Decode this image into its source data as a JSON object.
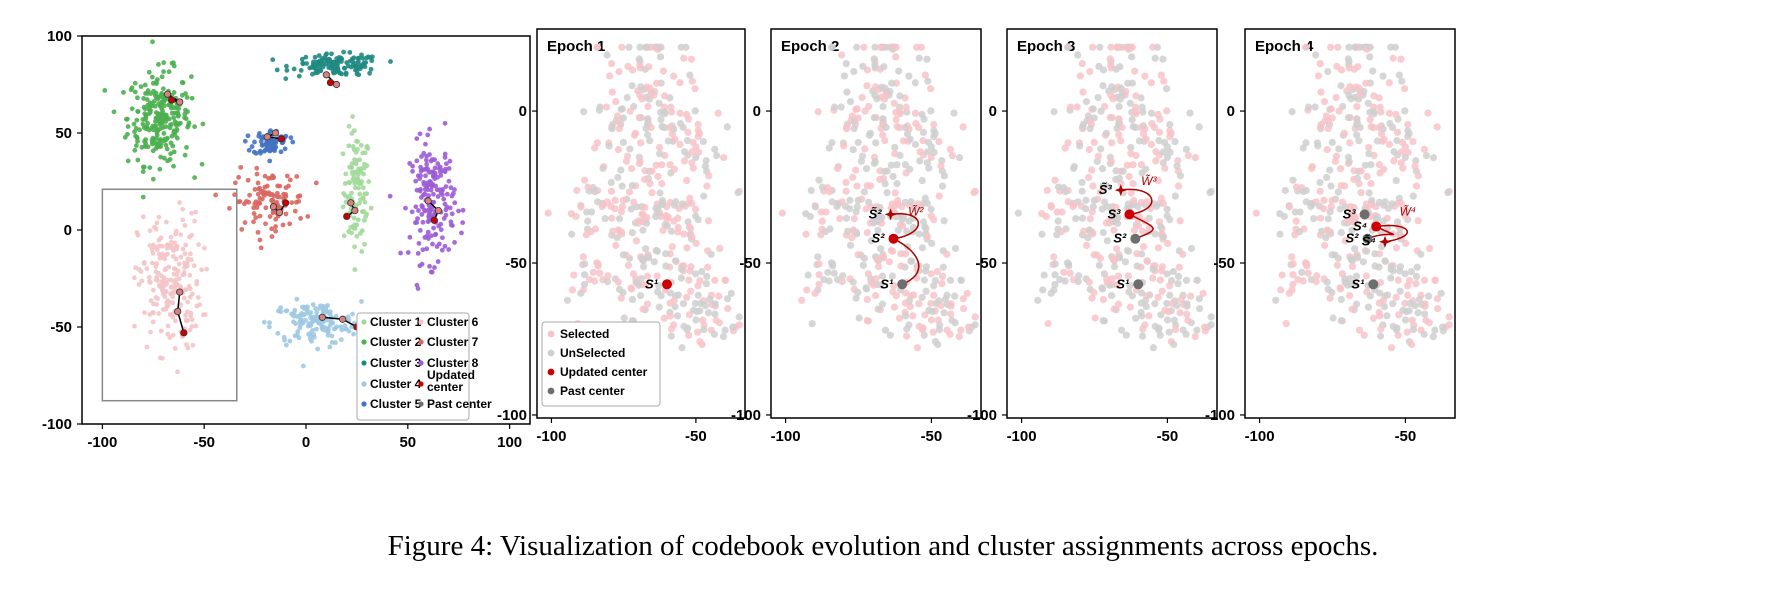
{
  "caption": "Figure 4: Visualization of codebook evolution and cluster assignments across epochs.",
  "chart_data": [
    {
      "type": "scatter",
      "xlim": [
        -110,
        110
      ],
      "ylim": [
        -100,
        100
      ],
      "xticks": [
        -100,
        -50,
        0,
        50,
        100
      ],
      "yticks": [
        100,
        50,
        0,
        -50,
        -100
      ],
      "grid": false,
      "legend_position": "bottom-right",
      "clusters": [
        {
          "name": "Cluster 1",
          "color": "#a3d99b",
          "center": [
            25,
            20
          ],
          "spread": [
            6,
            28
          ],
          "n": 110
        },
        {
          "name": "Cluster 2",
          "color": "#4caf50",
          "center": [
            -72,
            58
          ],
          "spread": [
            14,
            22
          ],
          "n": 260
        },
        {
          "name": "Cluster 3",
          "color": "#1f8a82",
          "center": [
            15,
            85
          ],
          "spread": [
            20,
            5
          ],
          "n": 130
        },
        {
          "name": "Cluster 4",
          "color": "#9ec9e2",
          "center": [
            5,
            -48
          ],
          "spread": [
            20,
            10
          ],
          "n": 150
        },
        {
          "name": "Cluster 5",
          "color": "#4472c4",
          "center": [
            -17,
            45
          ],
          "spread": [
            8,
            6
          ],
          "n": 70
        },
        {
          "name": "Cluster 6",
          "color": "#f4c4c8",
          "center": [
            -67,
            -27
          ],
          "spread": [
            14,
            32
          ],
          "n": 220
        },
        {
          "name": "Cluster 7",
          "color": "#d9675f",
          "center": [
            -18,
            15
          ],
          "spread": [
            16,
            14
          ],
          "n": 110
        },
        {
          "name": "Cluster 8",
          "color": "#9c5dd6",
          "center": [
            62,
            15
          ],
          "spread": [
            10,
            28
          ],
          "n": 190
        }
      ],
      "trajectories": [
        [
          [
            -62,
            -32
          ],
          [
            -63,
            -42
          ],
          [
            -60,
            -53
          ]
        ],
        [
          [
            -68,
            70
          ],
          [
            -62,
            66
          ],
          [
            -66,
            67
          ]
        ],
        [
          [
            10,
            80
          ],
          [
            15,
            75
          ],
          [
            12,
            76
          ]
        ],
        [
          [
            -15,
            50
          ],
          [
            -19,
            48
          ],
          [
            -12,
            47
          ]
        ],
        [
          [
            -16,
            12
          ],
          [
            -13,
            9
          ],
          [
            -10,
            14
          ]
        ],
        [
          [
            22,
            14
          ],
          [
            24,
            10
          ],
          [
            20,
            7
          ]
        ],
        [
          [
            60,
            15
          ],
          [
            65,
            10
          ],
          [
            63,
            5
          ]
        ],
        [
          [
            8,
            -45
          ],
          [
            18,
            -46
          ],
          [
            25,
            -50
          ]
        ]
      ],
      "legend": [
        {
          "label": "Cluster 1",
          "color": "#a3d99b"
        },
        {
          "label": "Cluster 6",
          "color": "#f4c4c8"
        },
        {
          "label": "Cluster 2",
          "color": "#4caf50"
        },
        {
          "label": "Cluster 7",
          "color": "#d9675f"
        },
        {
          "label": "Cluster 3",
          "color": "#1f8a82"
        },
        {
          "label": "Cluster 8",
          "color": "#9c5dd6"
        },
        {
          "label": "Cluster 4",
          "color": "#9ec9e2"
        },
        {
          "label": "Updated center",
          "color": "#cc0000"
        },
        {
          "label": "Cluster 5",
          "color": "#4472c4"
        },
        {
          "label": "Past center",
          "color": "#6e6e6e"
        }
      ],
      "zoom_box": {
        "x": [
          -100,
          -34
        ],
        "y": [
          -88,
          21
        ]
      }
    },
    {
      "type": "scatter",
      "title": "Epoch 1",
      "xlim": [
        -105,
        -33
      ],
      "ylim": [
        -101,
        27
      ],
      "xticks": [
        -100,
        -50
      ],
      "yticks": [
        0,
        -50,
        -100
      ],
      "grid": false,
      "legend_position": "bottom-left",
      "legend": [
        {
          "label": "Selected",
          "color": "#f4c4c8"
        },
        {
          "label": "UnSelected",
          "color": "#cfcfcf"
        },
        {
          "label": "Updated center",
          "color": "#cc0000"
        },
        {
          "label": "Past center",
          "color": "#6e6e6e"
        }
      ],
      "markers": [
        {
          "label": "S¹",
          "kind": "updated",
          "point": [
            -60,
            -57
          ]
        }
      ]
    },
    {
      "type": "scatter",
      "title": "Epoch 2",
      "xlim": [
        -105,
        -33
      ],
      "ylim": [
        -101,
        27
      ],
      "xticks": [
        -100,
        -50
      ],
      "yticks": [
        0,
        -50,
        -100
      ],
      "grid": false,
      "markers": [
        {
          "label": "S¹",
          "kind": "past",
          "point": [
            -60,
            -57
          ]
        },
        {
          "label": "S²",
          "kind": "updated",
          "point": [
            -63,
            -42
          ]
        },
        {
          "label": "S̃²",
          "kind": "star",
          "point": [
            -64,
            -34
          ]
        },
        {
          "label": "W̃²",
          "kind": "annotation",
          "point": [
            -58,
            -37
          ]
        }
      ]
    },
    {
      "type": "scatter",
      "title": "Epoch 3",
      "xlim": [
        -105,
        -33
      ],
      "ylim": [
        -101,
        27
      ],
      "xticks": [
        -100,
        -50
      ],
      "yticks": [
        0,
        -50,
        -100
      ],
      "grid": false,
      "markers": [
        {
          "label": "S¹",
          "kind": "past",
          "point": [
            -60,
            -57
          ]
        },
        {
          "label": "S²",
          "kind": "past",
          "point": [
            -61,
            -42
          ]
        },
        {
          "label": "S³",
          "kind": "updated",
          "point": [
            -63,
            -34
          ]
        },
        {
          "label": "S̃³",
          "kind": "star",
          "point": [
            -66,
            -26
          ]
        },
        {
          "label": "W̃³",
          "kind": "annotation",
          "point": [
            -59,
            -27
          ]
        }
      ]
    },
    {
      "type": "scatter",
      "title": "Epoch 4",
      "xlim": [
        -105,
        -33
      ],
      "ylim": [
        -101,
        27
      ],
      "xticks": [
        -100,
        -50
      ],
      "yticks": [
        0,
        -50,
        -100
      ],
      "grid": false,
      "markers": [
        {
          "label": "S¹",
          "kind": "past",
          "point": [
            -61,
            -57
          ]
        },
        {
          "label": "S³",
          "kind": "past",
          "point": [
            -64,
            -34
          ]
        },
        {
          "label": "S²",
          "kind": "past",
          "point": [
            -63,
            -42
          ]
        },
        {
          "label": "S⁴",
          "kind": "updated",
          "point": [
            -60,
            -38
          ]
        },
        {
          "label": "S̃⁴",
          "kind": "star",
          "point": [
            -57,
            -43
          ]
        },
        {
          "label": "W̃⁴",
          "kind": "annotation",
          "point": [
            -52,
            -37
          ]
        }
      ]
    }
  ]
}
